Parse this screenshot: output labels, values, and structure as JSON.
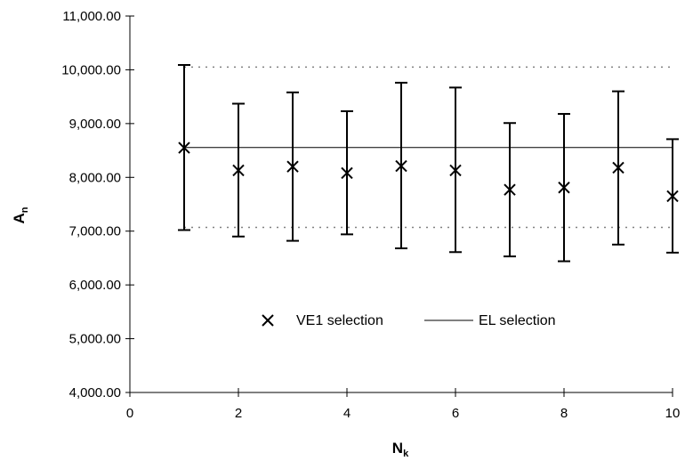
{
  "chart_data": {
    "type": "scatter",
    "xlabel": {
      "main": "N",
      "sub": "k"
    },
    "ylabel": {
      "main": "A",
      "sub": "n"
    },
    "xlim": [
      0,
      10
    ],
    "ylim": [
      4000,
      11000
    ],
    "x_ticks": [
      0,
      2,
      4,
      6,
      8,
      10
    ],
    "x_tick_labels": [
      "0",
      "2",
      "4",
      "6",
      "8",
      "10"
    ],
    "y_ticks": [
      4000,
      5000,
      6000,
      7000,
      8000,
      9000,
      10000,
      11000
    ],
    "y_tick_labels": [
      "4,000.00",
      "5,000.00",
      "6,000.00",
      "7,000.00",
      "8,000.00",
      "9,000.00",
      "10,000.00",
      "11,000.00"
    ],
    "grid": false,
    "legend_placement": "bottom-center",
    "series": [
      {
        "name": "VE1 selection",
        "marker": "x",
        "x": [
          1,
          2,
          3,
          4,
          5,
          6,
          7,
          8,
          9,
          10
        ],
        "y": [
          8550,
          8130,
          8200,
          8080,
          8210,
          8130,
          7770,
          7810,
          8180,
          7650
        ],
        "err_low": [
          7020,
          6900,
          6820,
          6940,
          6680,
          6610,
          6530,
          6440,
          6750,
          6600
        ],
        "err_high": [
          10090,
          9370,
          9580,
          9230,
          9760,
          9670,
          9010,
          9180,
          9600,
          8710
        ]
      },
      {
        "name": "EL selection",
        "style": "solid-line",
        "x": [
          1,
          10
        ],
        "y": [
          8555,
          8555
        ]
      }
    ],
    "reference_lines": [
      {
        "style": "dotted",
        "y": 10050,
        "x": [
          1,
          10
        ]
      },
      {
        "style": "dotted",
        "y": 7070,
        "x": [
          1,
          10
        ]
      }
    ],
    "colors": {
      "marker": "#000000",
      "line": "#000000",
      "dotted": "#808080"
    }
  }
}
